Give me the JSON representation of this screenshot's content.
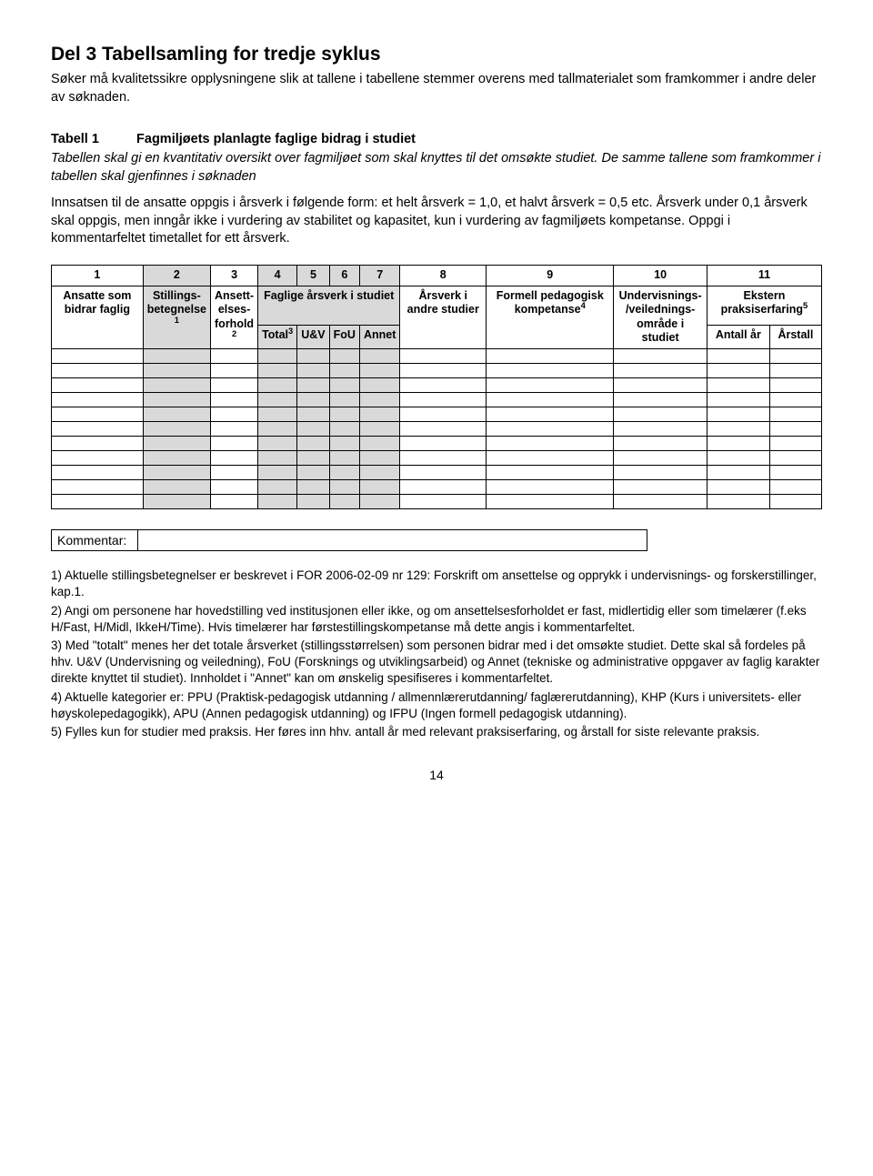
{
  "page": {
    "title": "Del 3 Tabellsamling for tredje syklus",
    "intro": "Søker må kvalitetssikre opplysningene slik at tallene i tabellene stemmer overens med tallmaterialet som framkommer i andre deler av søknaden.",
    "number": "14"
  },
  "tabell": {
    "num": "Tabell 1",
    "title": "Fagmiljøets planlagte faglige bidrag i studiet",
    "desc": "Tabellen skal gi en kvantitativ oversikt over fagmiljøet som skal knyttes til det omsøkte studiet. De samme tallene som framkommer i tabellen skal gjenfinnes i søknaden",
    "body": "Innsatsen til de ansatte oppgis i årsverk i følgende form: et helt årsverk = 1,0, et halvt årsverk = 0,5 etc. Årsverk under 0,1 årsverk skal oppgis, men inngår ikke i vurdering av stabilitet og kapasitet, kun i vurdering av fagmiljøets kompetanse. Oppgi i kommentarfeltet timetallet for ett årsverk."
  },
  "table": {
    "nums": [
      "1",
      "2",
      "3",
      "4",
      "5",
      "6",
      "7",
      "8",
      "9",
      "10",
      "11"
    ],
    "headers": {
      "c1": "Ansatte som bidrar faglig",
      "c2_a": "Stillings-",
      "c2_b": "betegnelse",
      "c2_sup": "1",
      "c3_a": "Ansett-",
      "c3_b": "elses-",
      "c3_c": "forhold",
      "c3_sup": "2",
      "c4": "Faglige årsverk i studiet",
      "c8": "Årsverk i andre studier",
      "c9_a": "Formell pedagogisk kompetanse",
      "c9_sup": "4",
      "c10_a": "Undervisnings-",
      "c10_b": "/veilednings-",
      "c10_c": "område i studiet",
      "c11_a": "Ekstern praksiserfaring",
      "c11_sup": "5",
      "sub_total": "Total",
      "sub_total_sup": "3",
      "sub_uv": "U&V",
      "sub_fou": "FoU",
      "sub_annet": "Annet",
      "sub_antall": "Antall år",
      "sub_arstall": "Årstall"
    },
    "shaded_cols": [
      2,
      4,
      5,
      6,
      7
    ],
    "empty_rows": 11
  },
  "comment": {
    "label": "Kommentar:"
  },
  "footnotes": {
    "f1": "1) Aktuelle stillingsbetegnelser er beskrevet i FOR 2006-02-09 nr 129: Forskrift om ansettelse og opprykk i undervisnings- og forskerstillinger, kap.1.",
    "f2": "2) Angi om personene har hovedstilling ved institusjonen eller ikke, og om ansettelsesforholdet er fast, midlertidig eller som timelærer (f.eks H/Fast, H/Midl, IkkeH/Time). Hvis timelærer har førstestillingskompetanse må dette angis i kommentarfeltet.",
    "f3": "3) Med \"totalt\" menes her det totale årsverket (stillingsstørrelsen) som personen bidrar med i det omsøkte studiet. Dette skal så fordeles på hhv. U&V (Undervisning og veiledning), FoU (Forsknings og utviklingsarbeid) og Annet (tekniske og administrative oppgaver av faglig karakter direkte knyttet til studiet). Innholdet i \"Annet\" kan om ønskelig spesifiseres i kommentarfeltet.",
    "f4": "4) Aktuelle kategorier er: PPU (Praktisk-pedagogisk utdanning / allmennlærerutdanning/ faglærerutdanning), KHP (Kurs i universitets- eller høyskolepedagogikk), APU (Annen pedagogisk utdanning) og IFPU (Ingen formell pedagogisk utdanning).",
    "f5": "5) Fylles kun for studier med praksis. Her føres inn hhv. antall år med relevant praksiserfaring, og årstall for siste relevante praksis."
  }
}
